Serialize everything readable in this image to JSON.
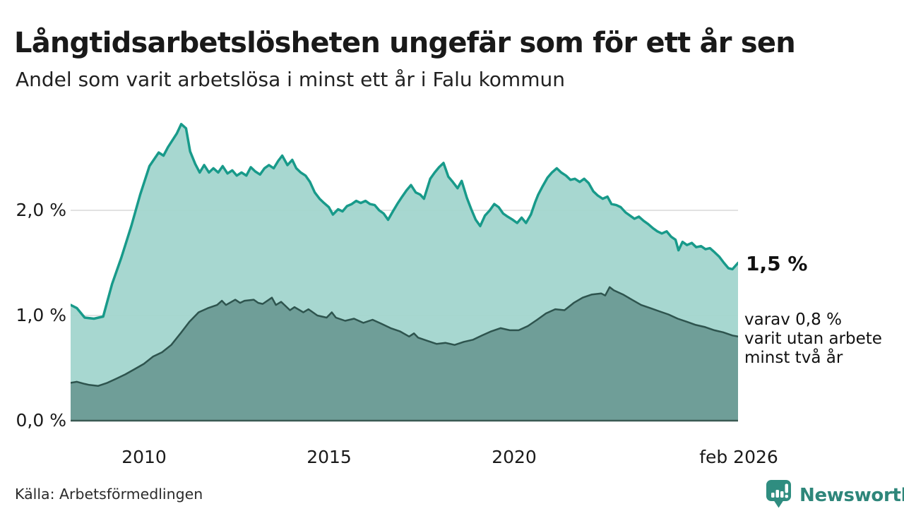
{
  "header": {
    "title": "Långtidsarbetslösheten ungefär som för ett år sen",
    "subtitle": "Andel som varit arbetslösa i minst ett år i Falu kommun"
  },
  "footer": {
    "source": "Källa: Arbetsförmedlingen",
    "logo_text": "Newsworthy"
  },
  "colors": {
    "accent_line": "#189a8a",
    "accent_fill": "#a0d4cc",
    "dark_line": "#2e544e",
    "dark_fill": "#6b9a93",
    "grid": "#d9d9d9",
    "axis": "#3a5a53",
    "text": "#1a1a1a",
    "logo": "#2e867a",
    "logo_icon": "#2f8d80"
  },
  "chart_data": {
    "type": "area",
    "title": "Långtidsarbetslösheten ungefär som för ett år sen",
    "subtitle": "Andel som varit arbetslösa i minst ett år i Falu kommun",
    "xlabel": "",
    "ylabel": "",
    "x_domain": [
      2008.04,
      2026.08
    ],
    "y_domain": [
      0,
      2.9
    ],
    "grid": "horizontal",
    "legend_position": "none",
    "yticks": [
      {
        "value": 0,
        "label": "0,0 %"
      },
      {
        "value": 1,
        "label": "1,0 %"
      },
      {
        "value": 2,
        "label": "2,0 %"
      }
    ],
    "xticks": [
      {
        "value": 2010,
        "label": "2010"
      },
      {
        "value": 2015,
        "label": "2015"
      },
      {
        "value": 2020,
        "label": "2020"
      },
      {
        "value": 2026.08,
        "label": "feb 2026"
      }
    ],
    "annotations": [
      {
        "text": "1,5 %",
        "series": "Arbetslösa minst ett år",
        "value": 1.5
      },
      {
        "lines": [
          "varav 0,8 %",
          "varit utan arbete",
          "minst två år"
        ],
        "series": "Varav utan arbete minst två år",
        "value": 0.8
      }
    ],
    "series": [
      {
        "name": "Arbetslösa minst ett år",
        "line_color": "#189a8a",
        "fill_color": "#a0d4cc",
        "points": [
          [
            2008.04,
            1.1
          ],
          [
            2008.21,
            1.07
          ],
          [
            2008.42,
            0.98
          ],
          [
            2008.67,
            0.97
          ],
          [
            2008.92,
            0.99
          ],
          [
            2009.16,
            1.3
          ],
          [
            2009.41,
            1.55
          ],
          [
            2009.68,
            1.85
          ],
          [
            2009.92,
            2.15
          ],
          [
            2010.17,
            2.42
          ],
          [
            2010.42,
            2.55
          ],
          [
            2010.55,
            2.52
          ],
          [
            2010.67,
            2.6
          ],
          [
            2010.91,
            2.73
          ],
          [
            2011.03,
            2.82
          ],
          [
            2011.16,
            2.78
          ],
          [
            2011.27,
            2.56
          ],
          [
            2011.41,
            2.44
          ],
          [
            2011.53,
            2.36
          ],
          [
            2011.65,
            2.43
          ],
          [
            2011.78,
            2.36
          ],
          [
            2011.9,
            2.4
          ],
          [
            2012.03,
            2.36
          ],
          [
            2012.15,
            2.42
          ],
          [
            2012.28,
            2.35
          ],
          [
            2012.41,
            2.38
          ],
          [
            2012.53,
            2.33
          ],
          [
            2012.66,
            2.36
          ],
          [
            2012.79,
            2.33
          ],
          [
            2012.91,
            2.41
          ],
          [
            2013.03,
            2.37
          ],
          [
            2013.16,
            2.34
          ],
          [
            2013.28,
            2.4
          ],
          [
            2013.4,
            2.43
          ],
          [
            2013.53,
            2.4
          ],
          [
            2013.65,
            2.47
          ],
          [
            2013.76,
            2.52
          ],
          [
            2013.9,
            2.43
          ],
          [
            2014.03,
            2.48
          ],
          [
            2014.14,
            2.4
          ],
          [
            2014.26,
            2.36
          ],
          [
            2014.39,
            2.33
          ],
          [
            2014.51,
            2.27
          ],
          [
            2014.64,
            2.17
          ],
          [
            2014.77,
            2.11
          ],
          [
            2014.89,
            2.07
          ],
          [
            2015.02,
            2.03
          ],
          [
            2015.13,
            1.96
          ],
          [
            2015.27,
            2.01
          ],
          [
            2015.39,
            1.99
          ],
          [
            2015.51,
            2.04
          ],
          [
            2015.64,
            2.06
          ],
          [
            2015.76,
            2.09
          ],
          [
            2015.88,
            2.07
          ],
          [
            2016.01,
            2.09
          ],
          [
            2016.13,
            2.06
          ],
          [
            2016.26,
            2.05
          ],
          [
            2016.38,
            2.0
          ],
          [
            2016.5,
            1.97
          ],
          [
            2016.62,
            1.91
          ],
          [
            2016.75,
            1.99
          ],
          [
            2016.87,
            2.06
          ],
          [
            2017.0,
            2.13
          ],
          [
            2017.12,
            2.19
          ],
          [
            2017.24,
            2.24
          ],
          [
            2017.37,
            2.17
          ],
          [
            2017.49,
            2.15
          ],
          [
            2017.59,
            2.11
          ],
          [
            2017.76,
            2.3
          ],
          [
            2017.88,
            2.36
          ],
          [
            2018.0,
            2.41
          ],
          [
            2018.12,
            2.45
          ],
          [
            2018.25,
            2.32
          ],
          [
            2018.37,
            2.27
          ],
          [
            2018.5,
            2.21
          ],
          [
            2018.61,
            2.28
          ],
          [
            2018.75,
            2.12
          ],
          [
            2018.87,
            2.01
          ],
          [
            2018.99,
            1.91
          ],
          [
            2019.11,
            1.85
          ],
          [
            2019.24,
            1.95
          ],
          [
            2019.37,
            2.0
          ],
          [
            2019.49,
            2.06
          ],
          [
            2019.61,
            2.03
          ],
          [
            2019.73,
            1.97
          ],
          [
            2019.85,
            1.94
          ],
          [
            2019.99,
            1.91
          ],
          [
            2020.11,
            1.88
          ],
          [
            2020.23,
            1.93
          ],
          [
            2020.35,
            1.88
          ],
          [
            2020.48,
            1.96
          ],
          [
            2020.6,
            2.08
          ],
          [
            2020.68,
            2.15
          ],
          [
            2020.8,
            2.23
          ],
          [
            2020.93,
            2.31
          ],
          [
            2021.05,
            2.36
          ],
          [
            2021.18,
            2.4
          ],
          [
            2021.3,
            2.36
          ],
          [
            2021.43,
            2.33
          ],
          [
            2021.55,
            2.29
          ],
          [
            2021.67,
            2.3
          ],
          [
            2021.8,
            2.27
          ],
          [
            2021.92,
            2.3
          ],
          [
            2022.04,
            2.26
          ],
          [
            2022.17,
            2.18
          ],
          [
            2022.29,
            2.14
          ],
          [
            2022.42,
            2.11
          ],
          [
            2022.55,
            2.13
          ],
          [
            2022.66,
            2.06
          ],
          [
            2022.79,
            2.05
          ],
          [
            2022.91,
            2.03
          ],
          [
            2023.04,
            1.98
          ],
          [
            2023.16,
            1.95
          ],
          [
            2023.28,
            1.92
          ],
          [
            2023.4,
            1.94
          ],
          [
            2023.53,
            1.9
          ],
          [
            2023.65,
            1.87
          ],
          [
            2023.78,
            1.83
          ],
          [
            2023.9,
            1.8
          ],
          [
            2024.02,
            1.78
          ],
          [
            2024.15,
            1.8
          ],
          [
            2024.27,
            1.75
          ],
          [
            2024.39,
            1.72
          ],
          [
            2024.47,
            1.62
          ],
          [
            2024.58,
            1.7
          ],
          [
            2024.7,
            1.67
          ],
          [
            2024.83,
            1.69
          ],
          [
            2024.95,
            1.65
          ],
          [
            2025.08,
            1.66
          ],
          [
            2025.2,
            1.63
          ],
          [
            2025.32,
            1.64
          ],
          [
            2025.45,
            1.6
          ],
          [
            2025.57,
            1.56
          ],
          [
            2025.7,
            1.5
          ],
          [
            2025.82,
            1.45
          ],
          [
            2025.93,
            1.44
          ],
          [
            2026.08,
            1.5
          ]
        ]
      },
      {
        "name": "Varav utan arbete minst två år",
        "line_color": "#2e544e",
        "fill_color": "#6b9a93",
        "points": [
          [
            2008.04,
            0.36
          ],
          [
            2008.21,
            0.37
          ],
          [
            2008.42,
            0.35
          ],
          [
            2008.54,
            0.34
          ],
          [
            2008.78,
            0.33
          ],
          [
            2009.03,
            0.36
          ],
          [
            2009.28,
            0.4
          ],
          [
            2009.52,
            0.44
          ],
          [
            2009.77,
            0.49
          ],
          [
            2010.02,
            0.54
          ],
          [
            2010.27,
            0.61
          ],
          [
            2010.51,
            0.65
          ],
          [
            2010.76,
            0.72
          ],
          [
            2011.01,
            0.83
          ],
          [
            2011.25,
            0.94
          ],
          [
            2011.5,
            1.03
          ],
          [
            2011.75,
            1.07
          ],
          [
            2012.0,
            1.1
          ],
          [
            2012.13,
            1.14
          ],
          [
            2012.24,
            1.1
          ],
          [
            2012.49,
            1.15
          ],
          [
            2012.62,
            1.12
          ],
          [
            2012.74,
            1.14
          ],
          [
            2012.99,
            1.15
          ],
          [
            2013.11,
            1.12
          ],
          [
            2013.23,
            1.11
          ],
          [
            2013.48,
            1.17
          ],
          [
            2013.59,
            1.1
          ],
          [
            2013.73,
            1.13
          ],
          [
            2013.97,
            1.05
          ],
          [
            2014.09,
            1.08
          ],
          [
            2014.33,
            1.03
          ],
          [
            2014.47,
            1.06
          ],
          [
            2014.71,
            1.0
          ],
          [
            2014.96,
            0.98
          ],
          [
            2015.1,
            1.03
          ],
          [
            2015.21,
            0.98
          ],
          [
            2015.46,
            0.95
          ],
          [
            2015.7,
            0.97
          ],
          [
            2015.95,
            0.93
          ],
          [
            2016.2,
            0.96
          ],
          [
            2016.45,
            0.92
          ],
          [
            2016.69,
            0.88
          ],
          [
            2016.94,
            0.85
          ],
          [
            2017.19,
            0.8
          ],
          [
            2017.32,
            0.83
          ],
          [
            2017.43,
            0.79
          ],
          [
            2017.68,
            0.76
          ],
          [
            2017.93,
            0.73
          ],
          [
            2018.17,
            0.74
          ],
          [
            2018.42,
            0.72
          ],
          [
            2018.67,
            0.75
          ],
          [
            2018.92,
            0.77
          ],
          [
            2019.16,
            0.81
          ],
          [
            2019.41,
            0.85
          ],
          [
            2019.66,
            0.88
          ],
          [
            2019.91,
            0.86
          ],
          [
            2020.15,
            0.86
          ],
          [
            2020.4,
            0.9
          ],
          [
            2020.65,
            0.96
          ],
          [
            2020.89,
            1.02
          ],
          [
            2021.14,
            1.06
          ],
          [
            2021.39,
            1.05
          ],
          [
            2021.64,
            1.12
          ],
          [
            2021.88,
            1.17
          ],
          [
            2022.13,
            1.2
          ],
          [
            2022.38,
            1.21
          ],
          [
            2022.49,
            1.19
          ],
          [
            2022.61,
            1.27
          ],
          [
            2022.72,
            1.24
          ],
          [
            2022.97,
            1.2
          ],
          [
            2023.21,
            1.15
          ],
          [
            2023.46,
            1.1
          ],
          [
            2023.71,
            1.07
          ],
          [
            2023.95,
            1.04
          ],
          [
            2024.2,
            1.01
          ],
          [
            2024.45,
            0.97
          ],
          [
            2024.7,
            0.94
          ],
          [
            2024.94,
            0.91
          ],
          [
            2025.19,
            0.89
          ],
          [
            2025.44,
            0.86
          ],
          [
            2025.68,
            0.84
          ],
          [
            2025.93,
            0.81
          ],
          [
            2026.08,
            0.8
          ]
        ]
      }
    ]
  }
}
